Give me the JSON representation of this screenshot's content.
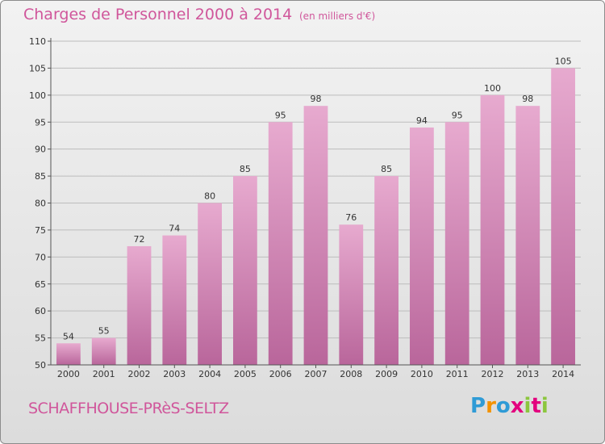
{
  "header": {
    "title": "Charges de Personnel 2000 à 2014",
    "subtitle": "(en milliers d'€)"
  },
  "footer": {
    "commune": "SCHAFFHOUSE-PRèS-SELTZ",
    "logo_letters": [
      "P",
      "r",
      "o",
      "x",
      "i",
      "t",
      "i"
    ],
    "logo_colors": [
      "#2f9bd6",
      "#f39200",
      "#2f9bd6",
      "#e3007e",
      "#8cc63e",
      "#e3007e",
      "#8cc63e"
    ]
  },
  "colors": {
    "bar_top": "#e7aacf",
    "bar_bottom": "#b9669b",
    "grid": "#bdbdbd",
    "axis": "#555555",
    "text": "#333333",
    "accent": "#d0569b"
  },
  "chart_data": {
    "type": "bar",
    "categories": [
      "2000",
      "2001",
      "2002",
      "2003",
      "2004",
      "2005",
      "2006",
      "2007",
      "2008",
      "2009",
      "2010",
      "2011",
      "2012",
      "2013",
      "2014"
    ],
    "values": [
      54,
      55,
      72,
      74,
      80,
      85,
      95,
      98,
      76,
      85,
      94,
      95,
      100,
      98,
      105
    ],
    "title": "Charges de Personnel 2000 à 2014",
    "subtitle": "(en milliers d'€)",
    "xlabel": "",
    "ylabel": "",
    "ylim": [
      50,
      110
    ],
    "yticks": [
      50,
      55,
      60,
      65,
      70,
      75,
      80,
      85,
      90,
      95,
      100,
      105,
      110
    ],
    "grid": true,
    "data_labels": true
  }
}
